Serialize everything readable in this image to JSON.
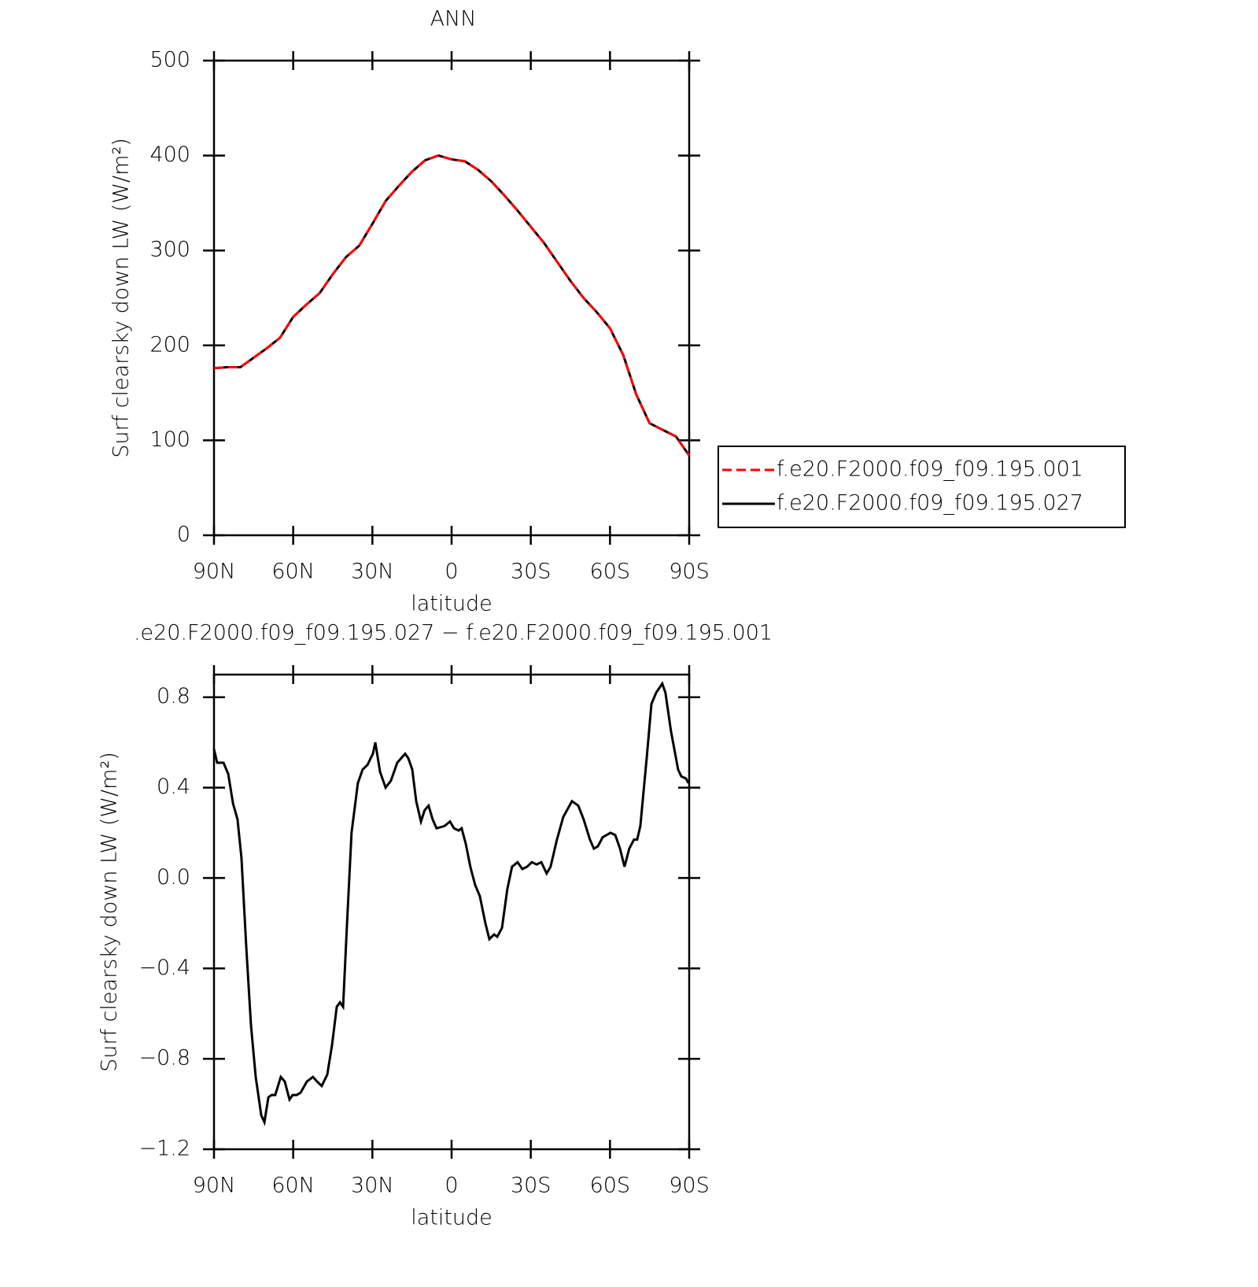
{
  "chart_data": [
    {
      "type": "line",
      "title": "ANN",
      "xlabel": "latitude",
      "ylabel": "Surf clearsky down LW (W/m²)",
      "x": [
        90,
        85,
        80,
        75,
        70,
        65,
        60,
        55,
        50,
        45,
        40,
        35,
        30,
        25,
        20,
        15,
        10,
        5,
        0,
        -5,
        -10,
        -15,
        -20,
        -25,
        -30,
        -35,
        -40,
        -45,
        -50,
        -55,
        -60,
        -65,
        -70,
        -75,
        -80,
        -85,
        -90
      ],
      "series": [
        {
          "name": "f.e20.F2000.f09_f09.195.001",
          "color": "#ff0000",
          "linestyle": "dashed",
          "values": [
            176,
            177,
            177,
            187,
            197,
            208,
            230,
            243,
            255,
            275,
            293,
            305,
            328,
            352,
            368,
            383,
            395,
            400,
            396,
            394,
            385,
            373,
            358,
            342,
            325,
            308,
            288,
            268,
            250,
            235,
            218,
            190,
            148,
            118,
            111,
            104,
            84
          ]
        },
        {
          "name": "f.e20.F2000.f09_f09.195.027",
          "color": "#000000",
          "linestyle": "solid",
          "values": [
            176,
            177,
            177,
            187,
            197,
            208,
            230,
            243,
            255,
            275,
            293,
            305,
            328,
            352,
            368,
            383,
            395,
            400,
            396,
            394,
            385,
            373,
            358,
            342,
            325,
            308,
            288,
            268,
            250,
            235,
            218,
            190,
            148,
            118,
            111,
            104,
            84
          ]
        }
      ],
      "xlim": [
        90,
        -90
      ],
      "xticks": [
        {
          "value": 90,
          "label": "90N"
        },
        {
          "value": 60,
          "label": "60N"
        },
        {
          "value": 30,
          "label": "30N"
        },
        0,
        {
          "value": -30,
          "label": "30S"
        },
        {
          "value": -60,
          "label": "60S"
        },
        {
          "value": -90,
          "label": "90S"
        }
      ],
      "ylim": [
        0,
        500
      ],
      "yticks": [
        0,
        100,
        200,
        300,
        400,
        500
      ],
      "legend": "right"
    },
    {
      "type": "line",
      "title": ".e20.F2000.f09_f09.195.027 − f.e20.F2000.f09_f09.195.001",
      "xlabel": "latitude",
      "ylabel": "Surf clearsky down LW (W/m²)",
      "x": [
        90,
        88.8,
        86.4,
        84.6,
        82.8,
        81.1,
        79.6,
        77.8,
        76,
        74.2,
        72.1,
        70.9,
        69.4,
        68.2,
        66.8,
        64.7,
        63.2,
        61.4,
        60.2,
        58.7,
        57.2,
        54.8,
        52.5,
        51,
        49.2,
        47.1,
        45.3,
        43.5,
        42.3,
        41.1,
        39.6,
        37.9,
        35.5,
        33.7,
        31.9,
        29.8,
        28.9,
        27.1,
        25,
        23,
        20.6,
        19.1,
        17.6,
        16.4,
        14.9,
        13.4,
        11.6,
        10.2,
        8.7,
        7.2,
        5.7,
        2.7,
        0.6,
        -0.9,
        -2.7,
        -3.8,
        -5.4,
        -7.1,
        -8.9,
        -10.7,
        -12.8,
        -14.3,
        -16.1,
        -17.3,
        -19.1,
        -21.1,
        -22.9,
        -25,
        -26.8,
        -28.6,
        -30.4,
        -32.2,
        -34,
        -36,
        -37.5,
        -39.9,
        -42.3,
        -45.6,
        -48,
        -50,
        -52.4,
        -53.9,
        -55.4,
        -57.2,
        -60.2,
        -62,
        -63.8,
        -65.5,
        -67.3,
        -69.1,
        -70.3,
        -71.5,
        -73.9,
        -75.7,
        -77.5,
        -79.8,
        -81,
        -83.1,
        -85.8,
        -87,
        -88.8,
        -89.7
      ],
      "values": [
        0.57,
        0.51,
        0.51,
        0.46,
        0.33,
        0.26,
        0.09,
        -0.3,
        -0.65,
        -0.88,
        -1.05,
        -1.08,
        -0.97,
        -0.96,
        -0.96,
        -0.88,
        -0.9,
        -0.98,
        -0.96,
        -0.96,
        -0.95,
        -0.9,
        -0.88,
        -0.9,
        -0.92,
        -0.87,
        -0.74,
        -0.57,
        -0.55,
        -0.57,
        -0.2,
        0.2,
        0.42,
        0.48,
        0.5,
        0.55,
        0.6,
        0.47,
        0.4,
        0.43,
        0.51,
        0.53,
        0.55,
        0.53,
        0.48,
        0.34,
        0.25,
        0.3,
        0.32,
        0.26,
        0.22,
        0.23,
        0.25,
        0.22,
        0.21,
        0.22,
        0.15,
        0.05,
        -0.03,
        -0.08,
        -0.2,
        -0.27,
        -0.25,
        -0.26,
        -0.22,
        -0.05,
        0.05,
        0.07,
        0.04,
        0.05,
        0.07,
        0.06,
        0.07,
        0.02,
        0.05,
        0.17,
        0.27,
        0.34,
        0.32,
        0.26,
        0.17,
        0.13,
        0.14,
        0.18,
        0.2,
        0.19,
        0.13,
        0.05,
        0.13,
        0.17,
        0.17,
        0.23,
        0.53,
        0.77,
        0.82,
        0.86,
        0.82,
        0.65,
        0.48,
        0.45,
        0.44,
        0.42
      ],
      "color": "#000000",
      "xlim": [
        90,
        -90
      ],
      "xticks": [
        {
          "value": 90,
          "label": "90N"
        },
        {
          "value": 60,
          "label": "60N"
        },
        {
          "value": 30,
          "label": "30N"
        },
        0,
        {
          "value": -30,
          "label": "30S"
        },
        {
          "value": -60,
          "label": "60S"
        },
        {
          "value": -90,
          "label": "90S"
        }
      ],
      "ylim": [
        -1.2,
        0.9
      ],
      "yticks": [
        {
          "value": -1.2,
          "label": "−1.2"
        },
        {
          "value": -0.8,
          "label": "−0.8"
        },
        {
          "value": -0.4,
          "label": "−0.4"
        },
        {
          "value": 0,
          "label": "0.0"
        },
        0.4,
        0.8
      ]
    }
  ]
}
